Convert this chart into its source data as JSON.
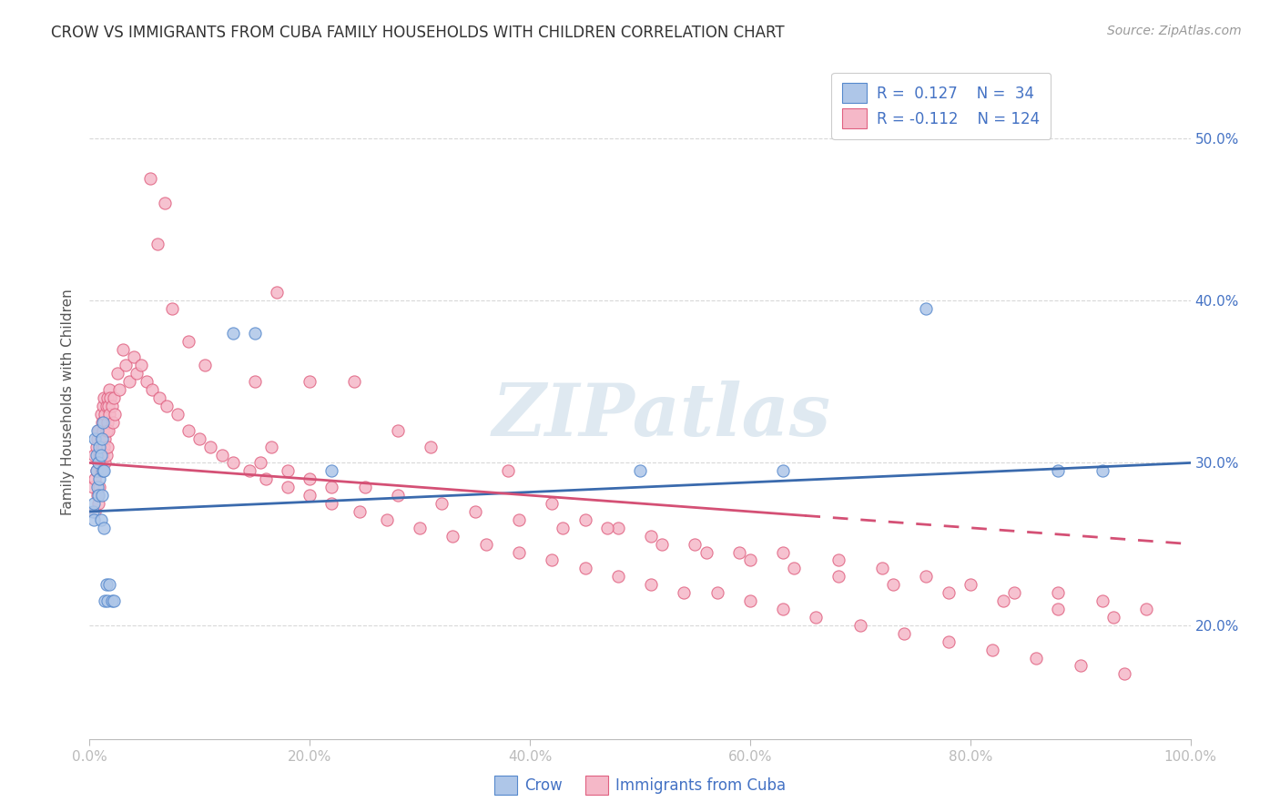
{
  "title": "CROW VS IMMIGRANTS FROM CUBA FAMILY HOUSEHOLDS WITH CHILDREN CORRELATION CHART",
  "source": "Source: ZipAtlas.com",
  "ylabel": "Family Households with Children",
  "xlim": [
    0,
    1.0
  ],
  "ylim": [
    0.13,
    0.545
  ],
  "x_ticks": [
    0.0,
    0.2,
    0.4,
    0.6,
    0.8,
    1.0
  ],
  "x_tick_labels": [
    "0.0%",
    "20.0%",
    "40.0%",
    "60.0%",
    "80.0%",
    "100.0%"
  ],
  "y_ticks": [
    0.2,
    0.3,
    0.4,
    0.5
  ],
  "y_tick_labels": [
    "20.0%",
    "30.0%",
    "40.0%",
    "50.0%"
  ],
  "legend_label1": "Crow",
  "legend_label2": "Immigrants from Cuba",
  "color_blue_fill": "#aec6e8",
  "color_blue_edge": "#5588cc",
  "color_pink_fill": "#f5b8c8",
  "color_pink_edge": "#e06080",
  "line_color_blue": "#3a6aad",
  "line_color_pink": "#d45075",
  "watermark": "ZIPatlas",
  "background_color": "#ffffff",
  "grid_color": "#d8d8d8",
  "crow_x": [
    0.003,
    0.004,
    0.004,
    0.005,
    0.006,
    0.006,
    0.007,
    0.007,
    0.008,
    0.008,
    0.009,
    0.009,
    0.01,
    0.01,
    0.011,
    0.011,
    0.012,
    0.012,
    0.013,
    0.013,
    0.014,
    0.015,
    0.016,
    0.018,
    0.02,
    0.022,
    0.13,
    0.15,
    0.22,
    0.5,
    0.63,
    0.76,
    0.88,
    0.92
  ],
  "crow_y": [
    0.27,
    0.265,
    0.275,
    0.315,
    0.295,
    0.305,
    0.285,
    0.32,
    0.28,
    0.3,
    0.31,
    0.29,
    0.265,
    0.305,
    0.315,
    0.28,
    0.295,
    0.325,
    0.26,
    0.295,
    0.215,
    0.225,
    0.215,
    0.225,
    0.215,
    0.215,
    0.38,
    0.38,
    0.295,
    0.295,
    0.295,
    0.395,
    0.295,
    0.295
  ],
  "cuba_x": [
    0.003,
    0.004,
    0.005,
    0.005,
    0.006,
    0.006,
    0.007,
    0.007,
    0.008,
    0.008,
    0.008,
    0.009,
    0.009,
    0.01,
    0.01,
    0.01,
    0.011,
    0.011,
    0.011,
    0.012,
    0.012,
    0.012,
    0.013,
    0.013,
    0.013,
    0.014,
    0.014,
    0.014,
    0.015,
    0.015,
    0.015,
    0.016,
    0.016,
    0.016,
    0.017,
    0.017,
    0.018,
    0.018,
    0.019,
    0.02,
    0.021,
    0.022,
    0.023,
    0.025,
    0.027,
    0.03,
    0.033,
    0.036,
    0.04,
    0.043,
    0.047,
    0.052,
    0.057,
    0.063,
    0.07,
    0.08,
    0.09,
    0.1,
    0.11,
    0.12,
    0.13,
    0.145,
    0.16,
    0.18,
    0.2,
    0.22,
    0.245,
    0.27,
    0.3,
    0.33,
    0.36,
    0.39,
    0.42,
    0.45,
    0.48,
    0.51,
    0.54,
    0.57,
    0.6,
    0.63,
    0.66,
    0.7,
    0.74,
    0.78,
    0.82,
    0.86,
    0.9,
    0.94,
    0.062,
    0.075,
    0.068,
    0.055,
    0.09,
    0.105,
    0.15,
    0.17,
    0.2,
    0.24,
    0.28,
    0.31,
    0.38,
    0.42,
    0.45,
    0.48,
    0.52,
    0.56,
    0.6,
    0.64,
    0.68,
    0.73,
    0.78,
    0.83,
    0.88,
    0.93,
    0.155,
    0.165,
    0.18,
    0.2,
    0.22,
    0.25,
    0.28,
    0.32,
    0.35,
    0.39,
    0.43,
    0.47,
    0.51,
    0.55,
    0.59,
    0.63,
    0.68,
    0.72,
    0.76,
    0.8,
    0.84,
    0.88,
    0.92,
    0.96
  ],
  "cuba_y": [
    0.285,
    0.305,
    0.29,
    0.27,
    0.31,
    0.295,
    0.28,
    0.315,
    0.3,
    0.32,
    0.275,
    0.305,
    0.285,
    0.33,
    0.315,
    0.295,
    0.325,
    0.31,
    0.295,
    0.335,
    0.32,
    0.305,
    0.34,
    0.325,
    0.31,
    0.33,
    0.315,
    0.3,
    0.335,
    0.32,
    0.305,
    0.34,
    0.325,
    0.31,
    0.335,
    0.32,
    0.345,
    0.33,
    0.34,
    0.335,
    0.325,
    0.34,
    0.33,
    0.355,
    0.345,
    0.37,
    0.36,
    0.35,
    0.365,
    0.355,
    0.36,
    0.35,
    0.345,
    0.34,
    0.335,
    0.33,
    0.32,
    0.315,
    0.31,
    0.305,
    0.3,
    0.295,
    0.29,
    0.285,
    0.28,
    0.275,
    0.27,
    0.265,
    0.26,
    0.255,
    0.25,
    0.245,
    0.24,
    0.235,
    0.23,
    0.225,
    0.22,
    0.22,
    0.215,
    0.21,
    0.205,
    0.2,
    0.195,
    0.19,
    0.185,
    0.18,
    0.175,
    0.17,
    0.435,
    0.395,
    0.46,
    0.475,
    0.375,
    0.36,
    0.35,
    0.405,
    0.35,
    0.35,
    0.32,
    0.31,
    0.295,
    0.275,
    0.265,
    0.26,
    0.25,
    0.245,
    0.24,
    0.235,
    0.23,
    0.225,
    0.22,
    0.215,
    0.21,
    0.205,
    0.3,
    0.31,
    0.295,
    0.29,
    0.285,
    0.285,
    0.28,
    0.275,
    0.27,
    0.265,
    0.26,
    0.26,
    0.255,
    0.25,
    0.245,
    0.245,
    0.24,
    0.235,
    0.23,
    0.225,
    0.22,
    0.22,
    0.215,
    0.21
  ]
}
